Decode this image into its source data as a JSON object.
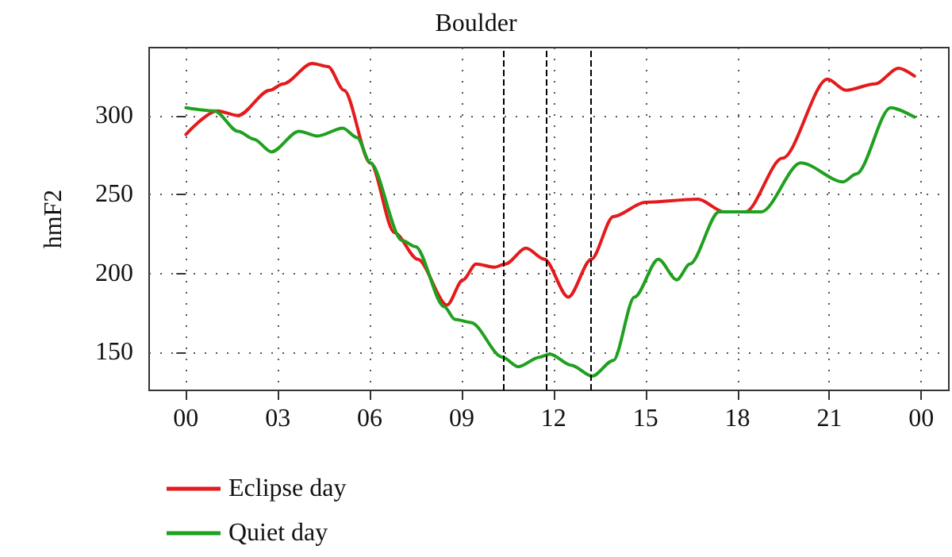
{
  "chart_data": {
    "type": "line",
    "title": "Boulder",
    "ylabel": "hmF2",
    "xlim": [
      -1.2,
      24.9
    ],
    "ylim": [
      126,
      343
    ],
    "xticks": [
      {
        "value": 0,
        "label": "00"
      },
      {
        "value": 3,
        "label": "03"
      },
      {
        "value": 6,
        "label": "06"
      },
      {
        "value": 9,
        "label": "09"
      },
      {
        "value": 12,
        "label": "12"
      },
      {
        "value": 15,
        "label": "15"
      },
      {
        "value": 18,
        "label": "18"
      },
      {
        "value": 21,
        "label": "21"
      },
      {
        "value": 24,
        "label": "00"
      }
    ],
    "yticks": [
      150,
      200,
      250,
      300
    ],
    "grid": true,
    "legend": "bottom",
    "line_style": "solid",
    "marker": "none",
    "series": [
      {
        "name": "Eclipse day",
        "color": "#e41a1c",
        "x": [
          0,
          1.02,
          1.7,
          2.74,
          3.17,
          4.12,
          4.64,
          5.16,
          6.02,
          6.8,
          7.57,
          8.52,
          9.04,
          9.47,
          10.07,
          10.42,
          11.1,
          11.7,
          12.48,
          13.23,
          13.95,
          14.99,
          16.71,
          17.57,
          18.26,
          19.47,
          20.94,
          21.54,
          22.49,
          23.26,
          23.78
        ],
        "values": [
          288,
          303,
          300,
          316,
          320,
          333,
          331,
          316,
          270,
          226,
          209,
          180,
          196,
          206,
          204,
          206,
          216,
          209,
          185,
          209,
          236,
          245,
          247,
          239,
          239,
          273,
          323,
          316,
          320,
          330,
          325
        ]
      },
      {
        "name": "Quiet day",
        "color": "#1fa01f",
        "x": [
          0,
          0.93,
          1.7,
          2.22,
          2.79,
          3.69,
          4.29,
          5.12,
          5.59,
          6.02,
          7.05,
          7.49,
          8.43,
          8.78,
          9.3,
          10.33,
          10.85,
          11.54,
          11.88,
          12.57,
          13.26,
          13.95,
          14.64,
          15.42,
          16.02,
          16.45,
          17.4,
          18.78,
          20.07,
          21.45,
          21.88,
          23.0,
          23.78
        ],
        "values": [
          305,
          303,
          290,
          285,
          277,
          290,
          287,
          292,
          286,
          270,
          221,
          217,
          179,
          171,
          169,
          147,
          141,
          147,
          149,
          142,
          135,
          145,
          185,
          209,
          196,
          206,
          239,
          239,
          270,
          258,
          263,
          305,
          299
        ]
      }
    ],
    "ref_lines": [
      {
        "axis": "x",
        "value": 10.38,
        "color": "#000000",
        "line_style": "dashed"
      },
      {
        "axis": "x",
        "value": 11.74,
        "color": "#000000",
        "line_style": "dashed"
      },
      {
        "axis": "x",
        "value": 13.23,
        "color": "#000000",
        "line_style": "dashed"
      }
    ]
  }
}
